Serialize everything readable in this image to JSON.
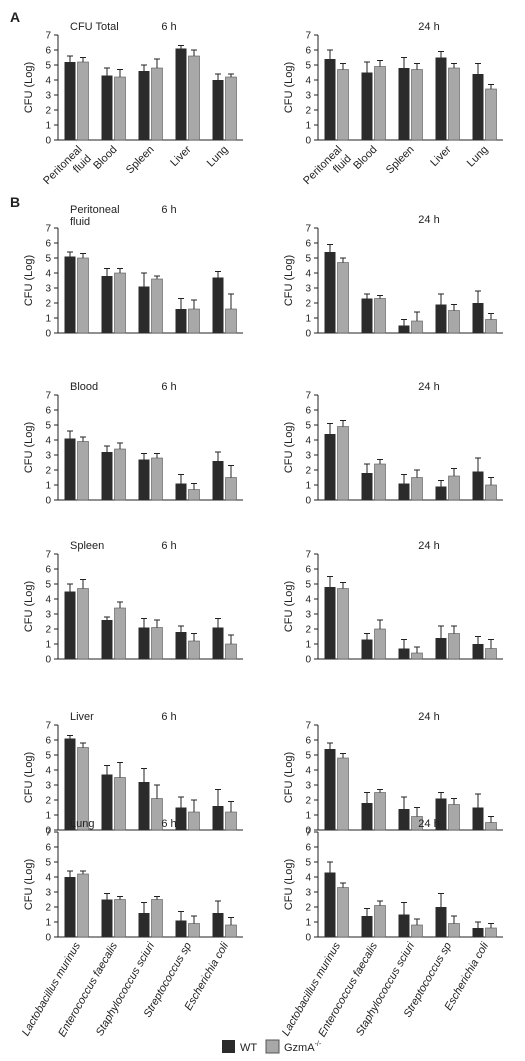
{
  "panel_labels": {
    "A": "A",
    "B": "B"
  },
  "legend": {
    "wt": "WT",
    "gzma": "GzmA",
    "gzma_sup": "-/-"
  },
  "colors": {
    "wt": "#2b2b2b",
    "gzma": "#a8a8a8",
    "axis": "#222222"
  },
  "ylabel": "CFU (Log)",
  "chart_data": [
    {
      "type": "bar",
      "id": "A6",
      "title": "CFU Total",
      "time": "6 h",
      "categories": [
        "Peritoneal fluid",
        "Blood",
        "Spleen",
        "Liver",
        "Lung"
      ],
      "ylim": [
        0,
        7
      ],
      "yticks": [
        0,
        1,
        2,
        3,
        4,
        5,
        6,
        7
      ],
      "series": [
        {
          "name": "WT",
          "values": [
            5.2,
            4.3,
            4.6,
            6.1,
            4.0
          ],
          "err": [
            0.4,
            0.5,
            0.4,
            0.2,
            0.4
          ]
        },
        {
          "name": "GzmA-/-",
          "values": [
            5.2,
            4.2,
            4.8,
            5.6,
            4.2
          ],
          "err": [
            0.3,
            0.5,
            0.6,
            0.4,
            0.2
          ]
        }
      ]
    },
    {
      "type": "bar",
      "id": "A24",
      "title": "",
      "time": "24 h",
      "categories": [
        "Peritoneal fluid",
        "Blood",
        "Spleen",
        "Liver",
        "Lung"
      ],
      "ylim": [
        0,
        7
      ],
      "yticks": [
        0,
        1,
        2,
        3,
        4,
        5,
        6,
        7
      ],
      "series": [
        {
          "name": "WT",
          "values": [
            5.4,
            4.5,
            4.8,
            5.5,
            4.4
          ],
          "err": [
            0.6,
            0.7,
            0.7,
            0.4,
            0.7
          ]
        },
        {
          "name": "GzmA-/-",
          "values": [
            4.7,
            4.9,
            4.7,
            4.8,
            3.4
          ],
          "err": [
            0.4,
            0.4,
            0.4,
            0.3,
            0.3
          ]
        }
      ]
    },
    {
      "type": "bar",
      "id": "B-PF-6",
      "title": "Peritoneal fluid",
      "time": "6 h",
      "categories": [
        "Lactobacillus murinus",
        "Enterococcus faecalis",
        "Staphylococcus sciuri",
        "Streptococcus sp",
        "Escherichia coli"
      ],
      "ylim": [
        0,
        7
      ],
      "yticks": [
        0,
        1,
        2,
        3,
        4,
        5,
        6,
        7
      ],
      "series": [
        {
          "name": "WT",
          "values": [
            5.1,
            3.8,
            3.1,
            1.6,
            3.7
          ],
          "err": [
            0.3,
            0.5,
            0.9,
            0.7,
            0.4
          ]
        },
        {
          "name": "GzmA-/-",
          "values": [
            5.0,
            4.0,
            3.6,
            1.6,
            1.6
          ],
          "err": [
            0.3,
            0.3,
            0.2,
            0.6,
            1.0
          ]
        }
      ]
    },
    {
      "type": "bar",
      "id": "B-PF-24",
      "title": "",
      "time": "24 h",
      "categories": [
        "Lactobacillus murinus",
        "Enterococcus faecalis",
        "Staphylococcus sciuri",
        "Streptococcus sp",
        "Escherichia coli"
      ],
      "ylim": [
        0,
        7
      ],
      "yticks": [
        0,
        1,
        2,
        3,
        4,
        5,
        6,
        7
      ],
      "series": [
        {
          "name": "WT",
          "values": [
            5.4,
            2.3,
            0.5,
            1.9,
            2.0
          ],
          "err": [
            0.5,
            0.3,
            0.4,
            0.7,
            0.8
          ]
        },
        {
          "name": "GzmA-/-",
          "values": [
            4.7,
            2.3,
            0.8,
            1.5,
            0.9
          ],
          "err": [
            0.3,
            0.2,
            0.6,
            0.4,
            0.4
          ]
        }
      ]
    },
    {
      "type": "bar",
      "id": "B-BL-6",
      "title": "Blood",
      "time": "6 h",
      "categories": [
        "Lactobacillus murinus",
        "Enterococcus faecalis",
        "Staphylococcus sciuri",
        "Streptococcus sp",
        "Escherichia coli"
      ],
      "ylim": [
        0,
        7
      ],
      "yticks": [
        0,
        1,
        2,
        3,
        4,
        5,
        6,
        7
      ],
      "series": [
        {
          "name": "WT",
          "values": [
            4.1,
            3.2,
            2.7,
            1.1,
            2.6
          ],
          "err": [
            0.5,
            0.4,
            0.4,
            0.6,
            0.6
          ]
        },
        {
          "name": "GzmA-/-",
          "values": [
            3.9,
            3.4,
            2.8,
            0.7,
            1.5
          ],
          "err": [
            0.3,
            0.4,
            0.3,
            0.4,
            0.8
          ]
        }
      ]
    },
    {
      "type": "bar",
      "id": "B-BL-24",
      "title": "",
      "time": "24 h",
      "categories": [
        "Lactobacillus murinus",
        "Enterococcus faecalis",
        "Staphylococcus sciuri",
        "Streptococcus sp",
        "Escherichia coli"
      ],
      "ylim": [
        0,
        7
      ],
      "yticks": [
        0,
        1,
        2,
        3,
        4,
        5,
        6,
        7
      ],
      "series": [
        {
          "name": "WT",
          "values": [
            4.4,
            1.8,
            1.1,
            0.9,
            1.9
          ],
          "err": [
            0.7,
            0.6,
            0.6,
            0.4,
            0.9
          ]
        },
        {
          "name": "GzmA-/-",
          "values": [
            4.9,
            2.4,
            1.5,
            1.6,
            1.0
          ],
          "err": [
            0.4,
            0.3,
            0.5,
            0.5,
            0.5
          ]
        }
      ]
    },
    {
      "type": "bar",
      "id": "B-SP-6",
      "title": "Spleen",
      "time": "6 h",
      "categories": [
        "Lactobacillus murinus",
        "Enterococcus faecalis",
        "Staphylococcus sciuri",
        "Streptococcus sp",
        "Escherichia coli"
      ],
      "ylim": [
        0,
        7
      ],
      "yticks": [
        0,
        1,
        2,
        3,
        4,
        5,
        6,
        7
      ],
      "series": [
        {
          "name": "WT",
          "values": [
            4.5,
            2.6,
            2.1,
            1.8,
            2.1
          ],
          "err": [
            0.5,
            0.2,
            0.6,
            0.4,
            0.6
          ]
        },
        {
          "name": "GzmA-/-",
          "values": [
            4.7,
            3.4,
            2.1,
            1.2,
            1.0
          ],
          "err": [
            0.6,
            0.4,
            0.5,
            0.5,
            0.6
          ]
        }
      ]
    },
    {
      "type": "bar",
      "id": "B-SP-24",
      "title": "",
      "time": "24 h",
      "categories": [
        "Lactobacillus murinus",
        "Enterococcus faecalis",
        "Staphylococcus sciuri",
        "Streptococcus sp",
        "Escherichia coli"
      ],
      "ylim": [
        0,
        7
      ],
      "yticks": [
        0,
        1,
        2,
        3,
        4,
        5,
        6,
        7
      ],
      "series": [
        {
          "name": "WT",
          "values": [
            4.8,
            1.3,
            0.7,
            1.4,
            1.0
          ],
          "err": [
            0.7,
            0.4,
            0.6,
            0.8,
            0.5
          ]
        },
        {
          "name": "GzmA-/-",
          "values": [
            4.7,
            2.0,
            0.4,
            1.7,
            0.7
          ],
          "err": [
            0.4,
            0.6,
            0.4,
            0.5,
            0.6
          ]
        }
      ]
    },
    {
      "type": "bar",
      "id": "B-LV-6",
      "title": "Liver",
      "time": "6 h",
      "categories": [
        "Lactobacillus murinus",
        "Enterococcus faecalis",
        "Staphylococcus sciuri",
        "Streptococcus sp",
        "Escherichia coli"
      ],
      "ylim": [
        0,
        7
      ],
      "yticks": [
        0,
        1,
        2,
        3,
        4,
        5,
        6,
        7
      ],
      "series": [
        {
          "name": "WT",
          "values": [
            6.1,
            3.7,
            3.2,
            1.5,
            1.6
          ],
          "err": [
            0.2,
            0.6,
            0.9,
            0.7,
            1.1
          ]
        },
        {
          "name": "GzmA-/-",
          "values": [
            5.5,
            3.5,
            2.1,
            1.2,
            1.2
          ],
          "err": [
            0.3,
            1.0,
            0.9,
            0.8,
            0.7
          ]
        }
      ]
    },
    {
      "type": "bar",
      "id": "B-LV-24",
      "title": "",
      "time": "24 h",
      "categories": [
        "Lactobacillus murinus",
        "Enterococcus faecalis",
        "Staphylococcus sciuri",
        "Streptococcus sp",
        "Escherichia coli"
      ],
      "ylim": [
        0,
        7
      ],
      "yticks": [
        0,
        1,
        2,
        3,
        4,
        5,
        6,
        7
      ],
      "series": [
        {
          "name": "WT",
          "values": [
            5.4,
            1.8,
            1.4,
            2.1,
            1.5
          ],
          "err": [
            0.4,
            0.7,
            0.8,
            0.4,
            0.9
          ]
        },
        {
          "name": "GzmA-/-",
          "values": [
            4.8,
            2.5,
            0.9,
            1.7,
            0.5
          ],
          "err": [
            0.3,
            0.2,
            0.6,
            0.4,
            0.4
          ]
        }
      ]
    },
    {
      "type": "bar",
      "id": "B-LU-6",
      "title": "Lung",
      "time": "6 h",
      "categories": [
        "Lactobacillus murinus",
        "Enterococcus faecalis",
        "Staphylococcus sciuri",
        "Streptococcus sp",
        "Escherichia coli"
      ],
      "ylim": [
        0,
        7
      ],
      "yticks": [
        0,
        1,
        2,
        3,
        4,
        5,
        6,
        7
      ],
      "series": [
        {
          "name": "WT",
          "values": [
            4.0,
            2.5,
            1.6,
            1.1,
            1.6
          ],
          "err": [
            0.4,
            0.4,
            0.7,
            0.6,
            0.8
          ]
        },
        {
          "name": "GzmA-/-",
          "values": [
            4.2,
            2.5,
            2.5,
            0.9,
            0.8
          ],
          "err": [
            0.2,
            0.2,
            0.2,
            0.5,
            0.5
          ]
        }
      ]
    },
    {
      "type": "bar",
      "id": "B-LU-24",
      "title": "",
      "time": "24 h",
      "categories": [
        "Lactobacillus murinus",
        "Enterococcus faecalis",
        "Staphylococcus sciuri",
        "Streptococcus sp",
        "Escherichia coli"
      ],
      "ylim": [
        0,
        7
      ],
      "yticks": [
        0,
        1,
        2,
        3,
        4,
        5,
        6,
        7
      ],
      "series": [
        {
          "name": "WT",
          "values": [
            4.3,
            1.4,
            1.5,
            2.0,
            0.6
          ],
          "err": [
            0.7,
            0.5,
            0.8,
            0.9,
            0.4
          ]
        },
        {
          "name": "GzmA-/-",
          "values": [
            3.3,
            2.1,
            0.8,
            0.9,
            0.6
          ],
          "err": [
            0.3,
            0.3,
            0.4,
            0.5,
            0.3
          ]
        }
      ]
    }
  ]
}
